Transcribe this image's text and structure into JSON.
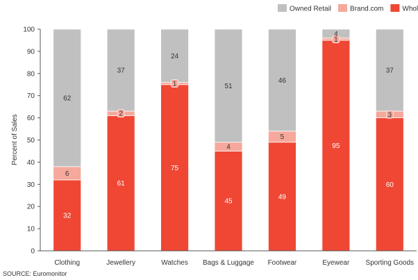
{
  "chart_data": {
    "type": "bar",
    "stacked": true,
    "categories": [
      "Clothing",
      "Jewellery",
      "Watches",
      "Bags & Luggage",
      "Footwear",
      "Eyewear",
      "Sporting Goods"
    ],
    "series": [
      {
        "name": "Wholesale",
        "color": "#ef4734",
        "label_color": "#ffffff",
        "values": [
          32,
          61,
          75,
          45,
          49,
          95,
          60
        ]
      },
      {
        "name": "Brand.com",
        "color": "#f5a89b",
        "label_color": "#333333",
        "values": [
          6,
          2,
          1,
          4,
          5,
          1,
          3
        ]
      },
      {
        "name": "Owned Retail",
        "color": "#c0c0c0",
        "label_color": "#333333",
        "values": [
          62,
          37,
          24,
          51,
          46,
          4,
          37
        ]
      }
    ],
    "legend_order": [
      "Owned Retail",
      "Brand.com",
      "Wholesale"
    ],
    "legend_position": "top-right",
    "ylabel": "Percent of Sales",
    "xlabel": "",
    "ylim": [
      0,
      100
    ],
    "yticks": [
      0,
      10,
      20,
      30,
      40,
      50,
      60,
      70,
      80,
      90,
      100
    ],
    "grid": false
  },
  "source": "SOURCE: Euromonitor"
}
